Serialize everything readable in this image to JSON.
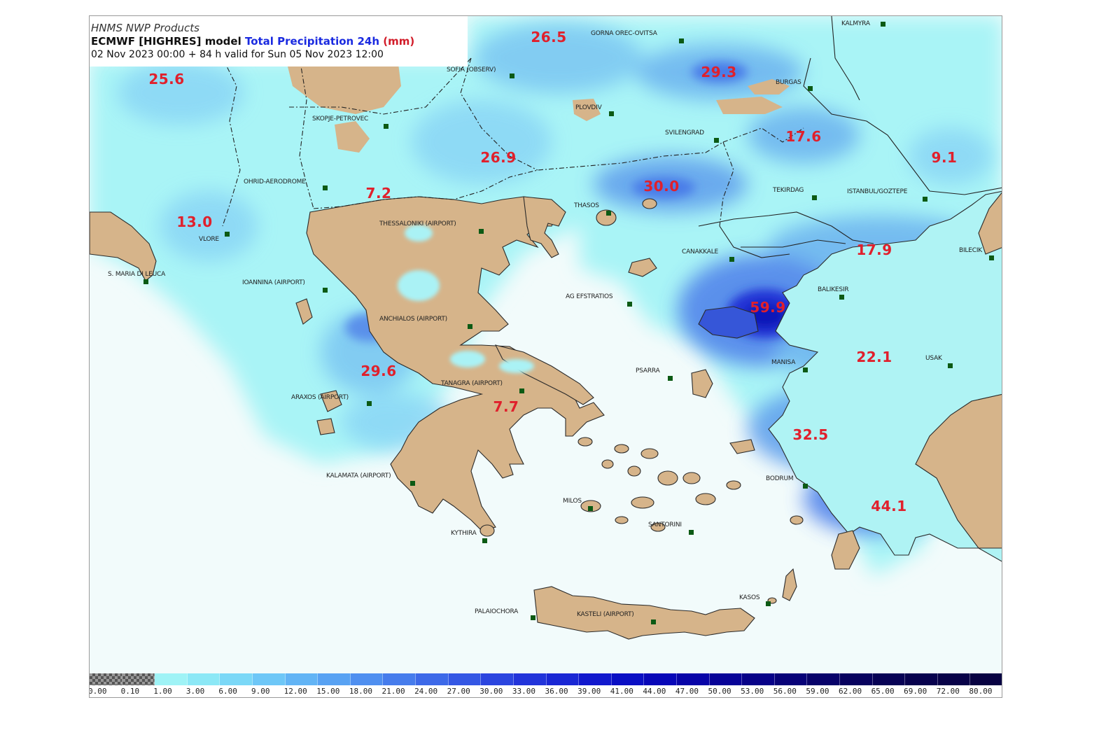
{
  "header": {
    "line1": "HNMS NWP Products",
    "line2_model": "ECMWF [HIGHRES] model",
    "line2_field": "Total Precipitation 24h",
    "line2_unit_open": "(",
    "line2_unit": "mm",
    "line2_unit_close": ")",
    "line3": "02 Nov 2023 00:00 + 84 h valid for Sun 05 Nov 2023 12:00"
  },
  "colors": {
    "land": "#d6b48a",
    "sea": "#f2fbfb",
    "label_red": "#e0202c",
    "station_green": "#0c5a14",
    "title_blue": "#1a2ae0"
  },
  "values": [
    "25.6",
    "26.5",
    "29.3",
    "17.6",
    "9.1",
    "26.9",
    "30.0",
    "7.2",
    "13.0",
    "17.9",
    "59.9",
    "22.1",
    "29.6",
    "7.7",
    "32.5",
    "44.1"
  ],
  "stations": [
    "GORNA OREC-OVITSA",
    "KALMYRA",
    "SOFIA (OBSERV)",
    "BURGAS",
    "PLOVDIV",
    "SKOPJE-PETROVEC",
    "SVILENGRAD",
    "OHRID-AERODROME",
    "TEKIRDAG",
    "ISTANBUL/GOZTEPE",
    "THESSALONIKI (AIRPORT)",
    "THASOS",
    "VLORE",
    "CANAKKALE",
    "BILECIK",
    "S. MARIA DI LEUCA",
    "IOANNINA (AIRPORT)",
    "AG EFSTRATIOS",
    "BALIKESIR",
    "ANCHIALOS (AIRPORT)",
    "PSARRA",
    "MANISA",
    "USAK",
    "TANAGRA (AIRPORT)",
    "ARAXOS (AIRPORT)",
    "KALAMATA (AIRPORT)",
    "BODRUM",
    "MILOS",
    "SANTORINI",
    "KYTHIRA",
    "KASOS",
    "PALAIOCHORA",
    "KASTELI (AIRPORT)"
  ],
  "legend": {
    "colors": [
      "#7a7a7a",
      "#a8a8a8",
      "#9ff3f6",
      "#8ce8f6",
      "#7bd8f7",
      "#6ec7f7",
      "#62b4f5",
      "#58a2f3",
      "#4f8ff0",
      "#467cec",
      "#3d69e8",
      "#3457e4",
      "#2b45df",
      "#2234da",
      "#1a27d4",
      "#1219cd",
      "#0a0fc4",
      "#0807b8",
      "#0804a8",
      "#080398",
      "#080288",
      "#080278",
      "#08026a",
      "#08025e",
      "#080255",
      "#08024e",
      "#080248",
      "#080242"
    ],
    "ticks": [
      "0.00",
      "0.10",
      "1.00",
      "3.00",
      "6.00",
      "9.00",
      "12.00",
      "15.00",
      "18.00",
      "21.00",
      "24.00",
      "27.00",
      "30.00",
      "33.00",
      "36.00",
      "39.00",
      "41.00",
      "44.00",
      "47.00",
      "50.00",
      "53.00",
      "56.00",
      "59.00",
      "62.00",
      "65.00",
      "69.00",
      "72.00",
      "80.00"
    ]
  }
}
